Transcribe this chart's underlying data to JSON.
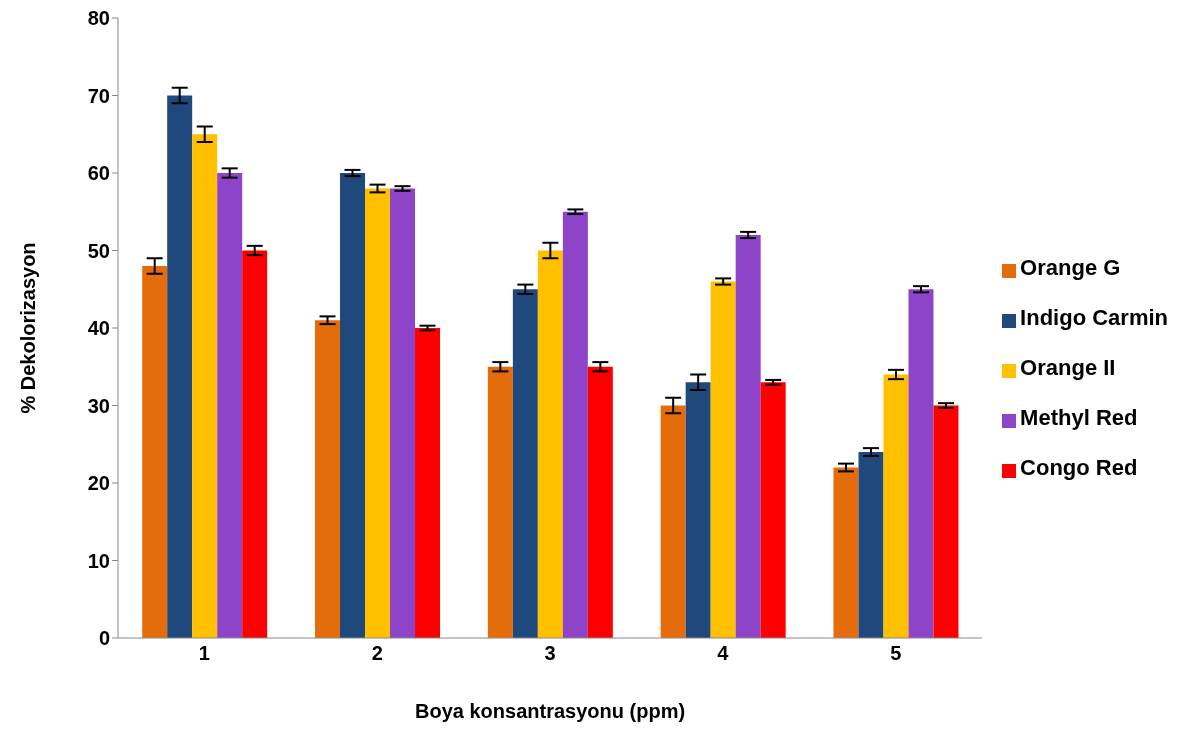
{
  "chart_data": {
    "type": "bar",
    "xlabel": "Boya konsantrasyonu (ppm)",
    "ylabel": "% Dekolorizasyon",
    "categories": [
      "1",
      "2",
      "3",
      "4",
      "5"
    ],
    "series": [
      {
        "name": "Orange G",
        "color": "#e46c0a",
        "values": [
          48,
          41,
          35,
          30,
          22
        ],
        "errors": [
          1,
          0.5,
          0.6,
          1,
          0.5
        ]
      },
      {
        "name": "Indigo Carmin",
        "color": "#1f497d",
        "values": [
          70,
          60,
          45,
          33,
          24
        ],
        "errors": [
          1,
          0.4,
          0.6,
          1,
          0.5
        ]
      },
      {
        "name": "Orange II",
        "color": "#ffc000",
        "values": [
          65,
          58,
          50,
          46,
          34
        ],
        "errors": [
          1,
          0.5,
          1,
          0.4,
          0.6
        ]
      },
      {
        "name": "Methyl Red",
        "color": "#8e44c8",
        "values": [
          60,
          58,
          55,
          52,
          45
        ],
        "errors": [
          0.6,
          0.3,
          0.3,
          0.4,
          0.4
        ]
      },
      {
        "name": "Congo Red",
        "color": "#ff0000",
        "values": [
          50,
          40,
          35,
          33,
          30
        ],
        "errors": [
          0.6,
          0.3,
          0.6,
          0.3,
          0.3
        ]
      }
    ],
    "ylim": [
      0,
      80
    ],
    "yticks": [
      0,
      10,
      20,
      30,
      40,
      50,
      60,
      70,
      80
    ],
    "grid": false,
    "legend": "right"
  }
}
